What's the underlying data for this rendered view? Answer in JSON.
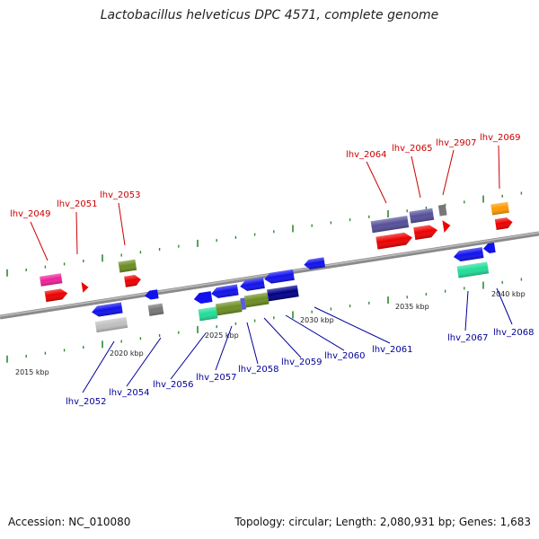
{
  "title": "Lactobacillus helveticus DPC 4571, complete genome",
  "footer": {
    "accession": "Accession: NC_010080",
    "summary": "Topology: circular; Length: 2,080,931 bp; Genes: 1,683"
  },
  "colors": {
    "backbone": "#8a8a8a",
    "tick": "#2f8a2f",
    "forward_label": "#cc0000",
    "reverse_label": "#000099",
    "genes": {
      "magenta": "#ee2299",
      "red": "#ee0000",
      "olive": "#6b8e23",
      "blue": "#1111ee",
      "gray": "#777777",
      "lightgray": "#c0c0c0",
      "teal": "#22dd99",
      "navy": "#000088",
      "slate": "#55509a",
      "orange": "#ff9900",
      "purpleblue": "#5b5bd6"
    }
  },
  "scale_labels": [
    "2015 kbp",
    "2020 kbp",
    "2025 kbp",
    "2030 kbp",
    "2035 kbp",
    "2040 kbp"
  ],
  "gene_labels": {
    "forward": [
      "lhv_2049",
      "lhv_2051",
      "lhv_2053",
      "lhv_2064",
      "lhv_2065",
      "lhv_2907",
      "lhv_2069"
    ],
    "reverse": [
      "lhv_2052",
      "lhv_2054",
      "lhv_2056",
      "lhv_2057",
      "lhv_2058",
      "lhv_2059",
      "lhv_2060",
      "lhv_2061",
      "lhv_2067",
      "lhv_2068"
    ]
  }
}
